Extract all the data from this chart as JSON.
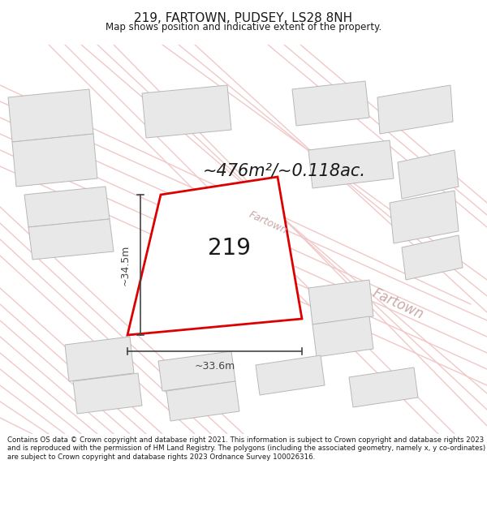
{
  "title": "219, FARTOWN, PUDSEY, LS28 8NH",
  "subtitle": "Map shows position and indicative extent of the property.",
  "area_text": "~476m²/~0.118ac.",
  "plot_number": "219",
  "dim_width": "~33.6m",
  "dim_height": "~34.5m",
  "street_label1": "Fartown",
  "street_label2": "Fartown",
  "footer": "Contains OS data © Crown copyright and database right 2021. This information is subject to Crown copyright and database rights 2023 and is reproduced with the permission of HM Land Registry. The polygons (including the associated geometry, namely x, y co-ordinates) are subject to Crown copyright and database rights 2023 Ordnance Survey 100026316.",
  "map_bg": "#ffffff",
  "road_color": "#f0c8c8",
  "plot_fill": "#ffffff",
  "plot_edge": "#dd0000",
  "building_fill": "#e8e8e8",
  "building_edge": "#b8b8b8",
  "dim_line_color": "#444444",
  "text_color": "#1a1a1a",
  "street_text_color": "#c8a8a8",
  "area_text_color": "#1a1a1a"
}
